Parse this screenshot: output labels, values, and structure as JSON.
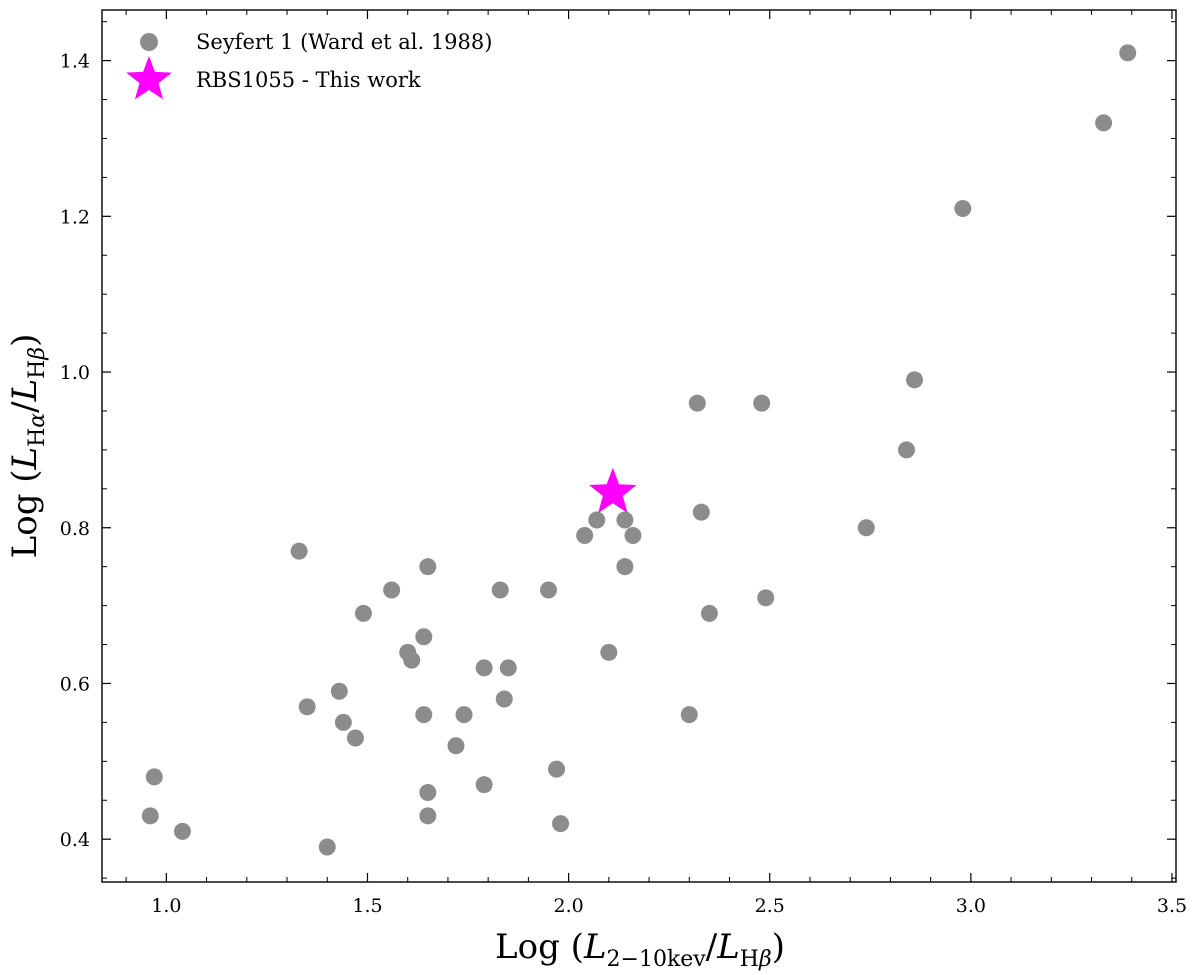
{
  "chart_data": {
    "type": "scatter",
    "xlabel": "Log (L2−10kev/LHβ)",
    "ylabel": "Log (LHα/LHβ)",
    "xlim": [
      0.84,
      3.51
    ],
    "ylim": [
      0.345,
      1.465
    ],
    "x_ticks": [
      1.0,
      1.5,
      2.0,
      2.5,
      3.0,
      3.5
    ],
    "x_tick_labels": [
      "1.0",
      "1.5",
      "2.0",
      "2.5",
      "3.0",
      "3.5"
    ],
    "y_ticks": [
      0.4,
      0.6,
      0.8,
      1.0,
      1.2,
      1.4
    ],
    "y_tick_labels": [
      "0.4",
      "0.6",
      "0.8",
      "1.0",
      "1.2",
      "1.4"
    ],
    "grid": false,
    "legend_position": "top-left",
    "series": [
      {
        "name": "Seyfert 1 (Ward et al. 1988)",
        "marker": "circle",
        "color": "#8c8c8c",
        "points": [
          [
            0.96,
            0.43
          ],
          [
            0.97,
            0.48
          ],
          [
            1.04,
            0.41
          ],
          [
            1.33,
            0.77
          ],
          [
            1.35,
            0.57
          ],
          [
            1.4,
            0.39
          ],
          [
            1.43,
            0.59
          ],
          [
            1.44,
            0.55
          ],
          [
            1.47,
            0.53
          ],
          [
            1.49,
            0.69
          ],
          [
            1.56,
            0.72
          ],
          [
            1.6,
            0.64
          ],
          [
            1.61,
            0.63
          ],
          [
            1.64,
            0.66
          ],
          [
            1.64,
            0.56
          ],
          [
            1.65,
            0.75
          ],
          [
            1.65,
            0.46
          ],
          [
            1.65,
            0.43
          ],
          [
            1.72,
            0.52
          ],
          [
            1.74,
            0.56
          ],
          [
            1.79,
            0.62
          ],
          [
            1.79,
            0.47
          ],
          [
            1.83,
            0.72
          ],
          [
            1.84,
            0.58
          ],
          [
            1.85,
            0.62
          ],
          [
            1.95,
            0.72
          ],
          [
            1.97,
            0.49
          ],
          [
            1.98,
            0.42
          ],
          [
            2.04,
            0.79
          ],
          [
            2.07,
            0.81
          ],
          [
            2.1,
            0.64
          ],
          [
            2.14,
            0.81
          ],
          [
            2.14,
            0.75
          ],
          [
            2.16,
            0.79
          ],
          [
            2.3,
            0.56
          ],
          [
            2.32,
            0.96
          ],
          [
            2.33,
            0.82
          ],
          [
            2.35,
            0.69
          ],
          [
            2.48,
            0.96
          ],
          [
            2.49,
            0.71
          ],
          [
            2.74,
            0.8
          ],
          [
            2.84,
            0.9
          ],
          [
            2.86,
            0.99
          ],
          [
            2.98,
            1.21
          ],
          [
            3.33,
            1.32
          ],
          [
            3.39,
            1.41
          ]
        ]
      },
      {
        "name": "RBS1055 - This work",
        "marker": "star",
        "color": "#ff00ff",
        "points": [
          [
            2.11,
            0.845
          ]
        ]
      }
    ]
  }
}
